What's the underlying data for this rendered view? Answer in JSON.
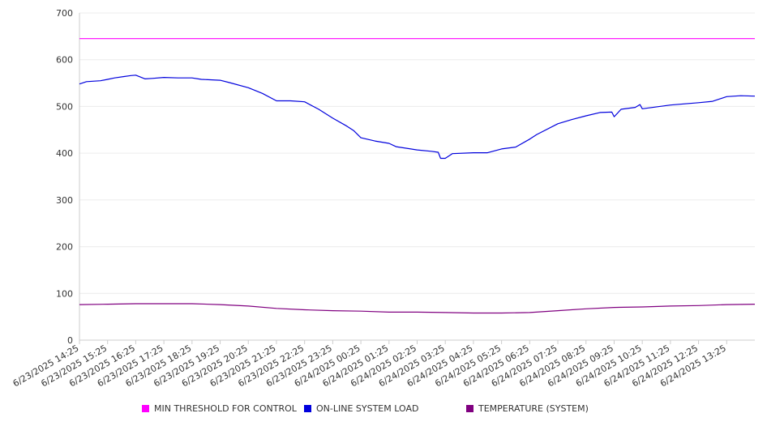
{
  "chart_data": {
    "type": "line",
    "title": "",
    "xlabel": "",
    "ylabel": "",
    "ylim": [
      0,
      700
    ],
    "yticks": [
      "0",
      "100",
      "200",
      "300",
      "400",
      "500",
      "600",
      "700"
    ],
    "grid": true,
    "legend_position": "bottom",
    "x_tick_labels": [
      "6/23/2025 14:25",
      "6/23/2025 15:25",
      "6/23/2025 16:25",
      "6/23/2025 17:25",
      "6/23/2025 18:25",
      "6/23/2025 19:25",
      "6/23/2025 20:25",
      "6/23/2025 21:25",
      "6/23/2025 22:25",
      "6/23/2025 23:25",
      "6/24/2025 00:25",
      "6/24/2025 01:25",
      "6/24/2025 02:25",
      "6/24/2025 03:25",
      "6/24/2025 04:25",
      "6/24/2025 05:25",
      "6/24/2025 06:25",
      "6/24/2025 07:25",
      "6/24/2025 08:25",
      "6/24/2025 09:25",
      "6/24/2025 10:25",
      "6/24/2025 11:25",
      "6/24/2025 12:25",
      "6/24/2025 13:25"
    ],
    "x_range": [
      "6/23/2025 14:25",
      "6/24/2025 14:25"
    ],
    "series": [
      {
        "name": "MIN THRESHOLD FOR CONTROL",
        "color": "#ff00ff",
        "points": [
          [
            "6/23/2025 14:25",
            645
          ],
          [
            "6/24/2025 14:25",
            645
          ]
        ]
      },
      {
        "name": "ON-LINE SYSTEM LOAD",
        "color": "#0000dd",
        "points": [
          [
            "6/23/2025 14:25",
            548
          ],
          [
            "6/23/2025 14:40",
            553
          ],
          [
            "6/23/2025 15:10",
            555
          ],
          [
            "6/23/2025 15:25",
            558
          ],
          [
            "6/23/2025 15:40",
            561
          ],
          [
            "6/23/2025 16:00",
            564
          ],
          [
            "6/23/2025 16:15",
            566
          ],
          [
            "6/23/2025 16:25",
            567
          ],
          [
            "6/23/2025 16:45",
            559
          ],
          [
            "6/23/2025 17:00",
            560
          ],
          [
            "6/23/2025 17:25",
            562
          ],
          [
            "6/23/2025 17:55",
            561
          ],
          [
            "6/23/2025 18:25",
            561
          ],
          [
            "6/23/2025 18:45",
            558
          ],
          [
            "6/23/2025 19:25",
            556
          ],
          [
            "6/23/2025 19:45",
            551
          ],
          [
            "6/23/2025 20:25",
            540
          ],
          [
            "6/23/2025 20:55",
            528
          ],
          [
            "6/23/2025 21:25",
            512
          ],
          [
            "6/23/2025 21:55",
            512
          ],
          [
            "6/23/2025 22:25",
            510
          ],
          [
            "6/23/2025 22:55",
            494
          ],
          [
            "6/23/2025 23:25",
            475
          ],
          [
            "6/23/2025 23:55",
            458
          ],
          [
            "6/24/2025 00:10",
            448
          ],
          [
            "6/24/2025 00:25",
            433
          ],
          [
            "6/24/2025 00:55",
            426
          ],
          [
            "6/24/2025 01:25",
            421
          ],
          [
            "6/24/2025 01:40",
            414
          ],
          [
            "6/24/2025 02:25",
            407
          ],
          [
            "6/24/2025 02:55",
            404
          ],
          [
            "6/24/2025 03:10",
            402
          ],
          [
            "6/24/2025 03:15",
            389
          ],
          [
            "6/24/2025 03:25",
            389
          ],
          [
            "6/24/2025 03:40",
            399
          ],
          [
            "6/24/2025 04:25",
            401
          ],
          [
            "6/24/2025 04:55",
            401
          ],
          [
            "6/24/2025 05:25",
            409
          ],
          [
            "6/24/2025 05:55",
            413
          ],
          [
            "6/24/2025 06:25",
            430
          ],
          [
            "6/24/2025 06:40",
            440
          ],
          [
            "6/24/2025 07:25",
            463
          ],
          [
            "6/24/2025 07:55",
            472
          ],
          [
            "6/24/2025 08:25",
            480
          ],
          [
            "6/24/2025 08:55",
            487
          ],
          [
            "6/24/2025 09:20",
            488
          ],
          [
            "6/24/2025 09:25",
            478
          ],
          [
            "6/24/2025 09:40",
            494
          ],
          [
            "6/24/2025 10:10",
            498
          ],
          [
            "6/24/2025 10:20",
            504
          ],
          [
            "6/24/2025 10:25",
            495
          ],
          [
            "6/24/2025 11:25",
            503
          ],
          [
            "6/24/2025 12:25",
            508
          ],
          [
            "6/24/2025 12:55",
            511
          ],
          [
            "6/24/2025 13:25",
            521
          ],
          [
            "6/24/2025 13:55",
            523
          ],
          [
            "6/24/2025 14:25",
            522
          ]
        ]
      },
      {
        "name": "TEMPERATURE (SYSTEM)",
        "color": "#800080",
        "points": [
          [
            "6/23/2025 14:25",
            76
          ],
          [
            "6/23/2025 15:25",
            77
          ],
          [
            "6/23/2025 16:25",
            78
          ],
          [
            "6/23/2025 18:25",
            78
          ],
          [
            "6/23/2025 19:25",
            76
          ],
          [
            "6/23/2025 20:25",
            73
          ],
          [
            "6/23/2025 21:25",
            68
          ],
          [
            "6/23/2025 22:25",
            65
          ],
          [
            "6/23/2025 23:25",
            63
          ],
          [
            "6/24/2025 00:25",
            62
          ],
          [
            "6/24/2025 01:25",
            60
          ],
          [
            "6/24/2025 02:25",
            60
          ],
          [
            "6/24/2025 03:25",
            59
          ],
          [
            "6/24/2025 04:25",
            58
          ],
          [
            "6/24/2025 05:25",
            58
          ],
          [
            "6/24/2025 06:25",
            59
          ],
          [
            "6/24/2025 07:25",
            63
          ],
          [
            "6/24/2025 08:25",
            67
          ],
          [
            "6/24/2025 09:25",
            70
          ],
          [
            "6/24/2025 10:25",
            71
          ],
          [
            "6/24/2025 11:25",
            73
          ],
          [
            "6/24/2025 12:25",
            74
          ],
          [
            "6/24/2025 13:25",
            76
          ],
          [
            "6/24/2025 14:25",
            77
          ]
        ]
      }
    ]
  }
}
